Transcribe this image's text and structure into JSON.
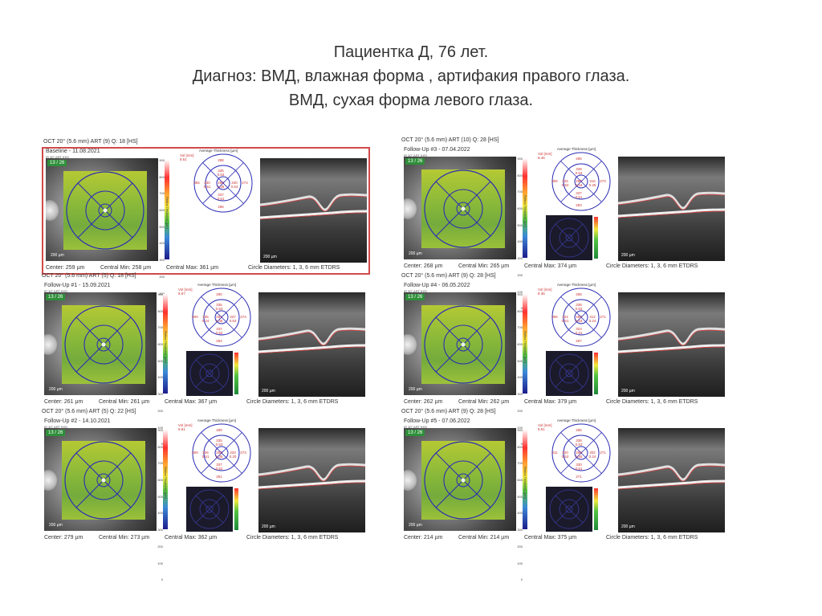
{
  "title": {
    "line1": "Пациентка Д, 76 лет.",
    "line2": "Диагноз: ВМД, влажная форма , артифакия правого глаза.",
    "line3": "ВМД, сухая форма левого глаза."
  },
  "common": {
    "fundus_badge": "13 / 26",
    "scale": "200 µm",
    "avg_label": "Average Thickness [µm]",
    "vol_label": "Vol [mm]",
    "tc_label": "Thickness Change [µm]",
    "cb_label": "Retina Thickness [µm]",
    "colorbar_ticks": [
      "900",
      "800",
      "700",
      "600",
      "500",
      "400",
      "300",
      "200",
      "100",
      "0"
    ],
    "diam": "Circle Diameters:  1, 3, 6 mm ETDRS"
  },
  "reports": [
    {
      "header": "Baseline - 11.08.2021",
      "sub": "IR 30° ART [HS]",
      "oct_title": "OCT 20° (5.6 mm) ART (9) Q: 18 [HS]",
      "vol": "8.61",
      "etdrs": {
        "c": "260",
        "cv": "1.36",
        "s": "335",
        "sv": "0.53",
        "i": "337",
        "iv": "0.51",
        "n": "340",
        "nv": "0.53",
        "t": "330",
        "tv": "0.51",
        "s6": "288",
        "i6": "286",
        "n6": "274",
        "t6": "355",
        "m": "269",
        "mv": "0.14"
      },
      "center": "Center: 259 µm",
      "cmin": "Central Min: 258 µm",
      "cmax": "Central Max: 361 µm",
      "has_change": false
    },
    {
      "header": "Follow-Up #1 - 15.09.2021",
      "sub": "IR 30° ART [HS]",
      "oct_title": "OCT 20° (5.6 mm) ART (5) Q: 18 [HS]",
      "vol": "8.67",
      "etdrs": {
        "c": "261",
        "cv": "1.36",
        "s": "335",
        "sv": "0.53",
        "i": "337",
        "iv": "0.52",
        "n": "337",
        "nv": "0.53",
        "t": "335",
        "tv": "0.24",
        "s6": "290",
        "i6": "284",
        "n6": "274",
        "t6": "300",
        "m": "270",
        "mv": "0.14"
      },
      "center": "Center: 261 µm",
      "cmin": "Central Min: 261 µm",
      "cmax": "Central Max: 367 µm",
      "has_change": true
    },
    {
      "header": "Follow-Up #2 - 14.10.2021",
      "sub": "IR 30° ART [HS]",
      "oct_title": "OCT 20° (5.6 mm) ART (5) Q: 22 [HS]",
      "vol": "8.61",
      "etdrs": {
        "c": "262",
        "cv": "1.35",
        "s": "335",
        "sv": "0.53",
        "i": "337",
        "iv": "0.52",
        "n": "333",
        "nv": "0.20",
        "t": "326",
        "tv": "0.51",
        "s6": "289",
        "i6": "281",
        "n6": "273",
        "t6": "300",
        "m": "271",
        "mv": "0.14"
      },
      "center": "Center: 279 µm",
      "cmin": "Central Min: 273 µm",
      "cmax": "Central Max: 362 µm",
      "has_change": true
    },
    {
      "header": "Follow-Up #3 - 07.04.2022",
      "sub": "IR 30° ART [HS]",
      "oct_title": "OCT 20° (5.6 mm) ART (10) Q: 28 [HS]",
      "vol": "8.46",
      "etdrs": {
        "c": "280",
        "cv": "1.54",
        "s": "339",
        "sv": "0.53",
        "i": "337",
        "iv": "0.51",
        "n": "315",
        "nv": "0.25",
        "t": "325",
        "tv": "0.52",
        "s6": "285",
        "i6": "283",
        "n6": "273",
        "t6": "306",
        "m": "283",
        "mv": "0.22"
      },
      "center": "Center: 268 µm",
      "cmin": "Central Min: 265 µm",
      "cmax": "Central Max: 374 µm",
      "has_change": true
    },
    {
      "header": "Follow-Up #4 - 06.05.2022",
      "sub": "IR 30° ART [HS]",
      "oct_title": "OCT 20° (5.6 mm) ART (9) Q: 28 [HS]",
      "vol": "8.36",
      "etdrs": {
        "c": "269",
        "cv": "1.53",
        "s": "338",
        "sv": "0.53",
        "i": "323",
        "iv": "0.41",
        "n": "312",
        "nv": "0.24",
        "t": "324",
        "tv": "0.51",
        "s6": "288",
        "i6": "287",
        "n6": "271",
        "t6": "306",
        "m": "282",
        "mv": "0.21"
      },
      "center": "Center: 262 µm",
      "cmin": "Central Min: 262 µm",
      "cmax": "Central Max: 379 µm",
      "has_change": true
    },
    {
      "header": "Follow-Up #5 - 07.06.2022",
      "sub": "IR 30° ART [HS]",
      "oct_title": "OCT 20° (5.6 mm) ART (9) Q: 28 [HS]",
      "vol": "8.51",
      "etdrs": {
        "c": "268",
        "cv": "1.55",
        "s": "338",
        "sv": "0.53",
        "i": "330",
        "iv": "0.51",
        "n": "302",
        "nv": "0.24",
        "t": "320",
        "tv": "0.52",
        "s6": "285",
        "i6": "271",
        "n6": "271",
        "t6": "311",
        "m": "265",
        "mv": "0.21"
      },
      "center": "Center: 214 µm",
      "cmin": "Central Min: 214 µm",
      "cmax": "Central Max: 375 µm",
      "has_change": true
    }
  ]
}
